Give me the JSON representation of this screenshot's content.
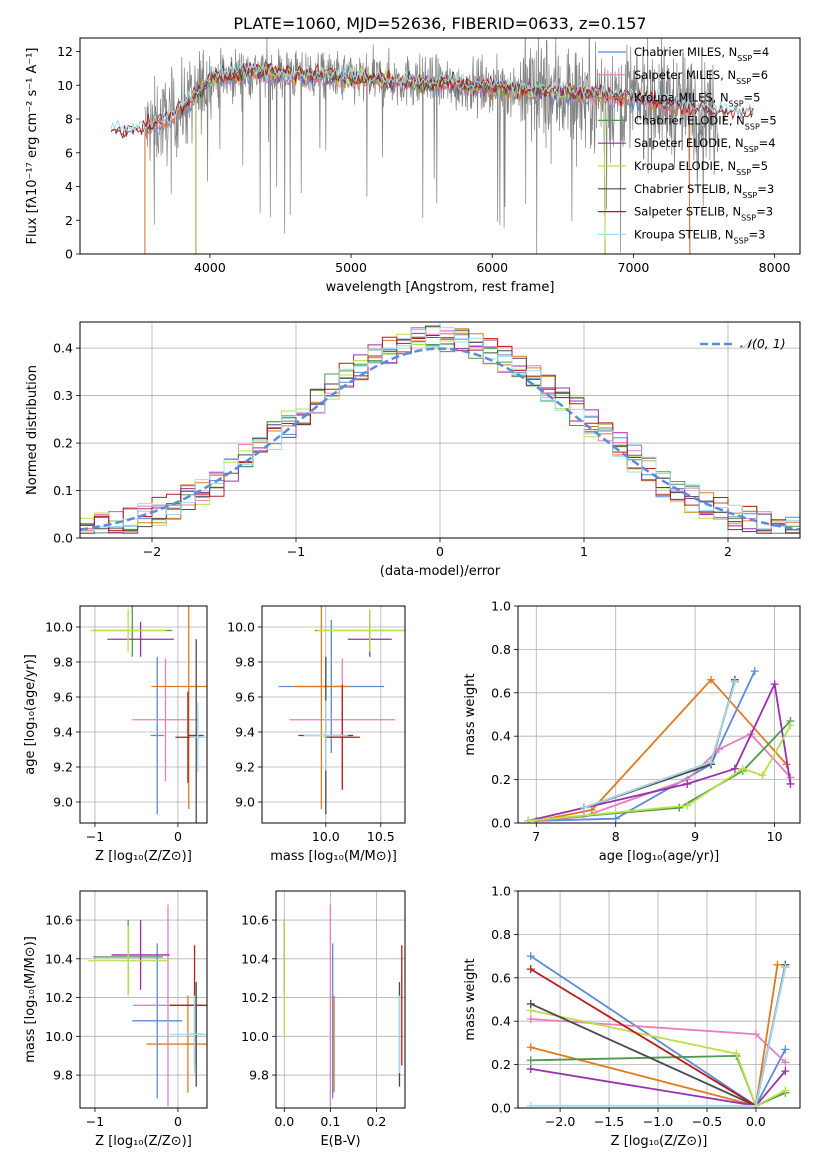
{
  "title": "PLATE=1060, MJD=52636, FIBERID=0633, z=0.157",
  "colors": {
    "chabrier_miles": "#5b8bd9",
    "salpeter_miles": "#e77fbf",
    "kroupa_miles": "#e07a1f",
    "chabrier_elodie": "#4d9a4d",
    "salpeter_elodie": "#9a2fae",
    "kroupa_elodie": "#b8e04a",
    "chabrier_stelib": "#4a4a4a",
    "salpeter_stelib": "#b51d1d",
    "kroupa_stelib": "#9fdcef",
    "data": "#808080",
    "normal": "#5b8bd9"
  },
  "chart_data": [
    {
      "id": "spectrum",
      "type": "line",
      "xlabel": "wavelength [Angstrom, rest frame]",
      "ylabel": "Flux [fλ10⁻¹⁷ erg cm⁻² s⁻¹ A⁻¹]",
      "xlim": [
        3080,
        8180
      ],
      "ylim": [
        0,
        12.8
      ],
      "xticks": [
        4000,
        5000,
        6000,
        7000,
        8000
      ],
      "yticks": [
        0,
        2,
        4,
        6,
        8,
        10,
        12
      ],
      "legend": "top-right",
      "legend_entries": [
        {
          "key": "chabrier_miles",
          "label": "Chabrier MILES, N",
          "sub": "SSP",
          "suffix": "=4"
        },
        {
          "key": "salpeter_miles",
          "label": "Salpeter MILES, N",
          "sub": "SSP",
          "suffix": "=6"
        },
        {
          "key": "kroupa_miles",
          "label": "Kroupa MILES, N",
          "sub": "SSP",
          "suffix": "=5"
        },
        {
          "key": "chabrier_elodie",
          "label": "Chabrier ELODIE, N",
          "sub": "SSP",
          "suffix": "=5"
        },
        {
          "key": "salpeter_elodie",
          "label": "Salpeter ELODIE, N",
          "sub": "SSP",
          "suffix": "=4"
        },
        {
          "key": "kroupa_elodie",
          "label": "Kroupa ELODIE, N",
          "sub": "SSP",
          "suffix": "=5"
        },
        {
          "key": "chabrier_stelib",
          "label": "Chabrier STELIB, N",
          "sub": "SSP",
          "suffix": "=3"
        },
        {
          "key": "salpeter_stelib",
          "label": "Salpeter STELIB, N",
          "sub": "SSP",
          "suffix": "=3"
        },
        {
          "key": "kroupa_stelib",
          "label": "Kroupa STELIB, N",
          "sub": "SSP",
          "suffix": "=3"
        }
      ],
      "continuum": {
        "x": [
          3300,
          3500,
          3700,
          3900,
          4000,
          4300,
          4700,
          5000,
          5300,
          5600,
          6000,
          6400,
          6800,
          7100,
          7400,
          7800
        ],
        "y": [
          7.2,
          7.3,
          8.0,
          9.3,
          10.4,
          10.8,
          10.6,
          10.4,
          10.3,
          10.1,
          9.9,
          9.6,
          9.4,
          9.1,
          8.6,
          8.2
        ]
      },
      "data_range": [
        3540,
        7600
      ],
      "model_range": [
        3300,
        7850
      ]
    },
    {
      "id": "residuals",
      "type": "histogram",
      "xlabel": "(data-model)/error",
      "ylabel": "Normed distribution",
      "xlim": [
        -2.5,
        2.5
      ],
      "ylim": [
        0,
        0.455
      ],
      "xticks": [
        -2,
        -1,
        0,
        1,
        2
      ],
      "yticks": [
        0,
        0.1,
        0.2,
        0.3,
        0.4
      ],
      "legend": "top-right",
      "normal_label": "𝒩(0, 1)",
      "bin_edges": [
        -2.5,
        -2.4,
        -2.3,
        -2.2,
        -2.1,
        -2.0,
        -1.9,
        -1.8,
        -1.7,
        -1.6,
        -1.5,
        -1.4,
        -1.3,
        -1.2,
        -1.1,
        -1.0,
        -0.9,
        -0.8,
        -0.7,
        -0.6,
        -0.5,
        -0.4,
        -0.3,
        -0.2,
        -0.1,
        0.0,
        0.1,
        0.2,
        0.3,
        0.4,
        0.5,
        0.6,
        0.7,
        0.8,
        0.9,
        1.0,
        1.1,
        1.2,
        1.3,
        1.4,
        1.5,
        1.6,
        1.7,
        1.8,
        1.9,
        2.0,
        2.1,
        2.2,
        2.3,
        2.4,
        2.5
      ]
    },
    {
      "id": "age_vs_z",
      "type": "errorbar",
      "xlabel": "Z [log₁₀(Z/Z⊙)]",
      "ylabel": "age  [log₁₀(age/yr)]",
      "xlim": [
        -1.18,
        0.35
      ],
      "ylim": [
        8.88,
        10.12
      ],
      "xticks": [
        -1,
        0
      ],
      "yticks": [
        9.0,
        9.2,
        9.4,
        9.6,
        9.8,
        10.0
      ],
      "points": [
        {
          "key": "chabrier_miles",
          "x": -0.25,
          "y": 9.38,
          "xerr": 0.08,
          "yerr": 0.45
        },
        {
          "key": "salpeter_miles",
          "x": -0.15,
          "y": 9.47,
          "xerr": 0.4,
          "yerr": 0.35
        },
        {
          "key": "kroupa_miles",
          "x": 0.13,
          "y": 9.66,
          "xerr": 0.45,
          "yerr": 0.7
        },
        {
          "key": "chabrier_elodie",
          "x": -0.55,
          "y": 9.98,
          "xerr": 0.48,
          "yerr": 0.15
        },
        {
          "key": "salpeter_elodie",
          "x": -0.45,
          "y": 9.93,
          "xerr": 0.4,
          "yerr": 0.1
        },
        {
          "key": "kroupa_elodie",
          "x": -0.6,
          "y": 9.98,
          "xerr": 0.45,
          "yerr": 0.12
        },
        {
          "key": "chabrier_stelib",
          "x": 0.22,
          "y": 9.38,
          "xerr": 0.09,
          "yerr": 0.55
        },
        {
          "key": "salpeter_stelib",
          "x": 0.12,
          "y": 9.37,
          "xerr": 0.15,
          "yerr": 0.26
        },
        {
          "key": "kroupa_stelib",
          "x": 0.24,
          "y": 9.37,
          "xerr": 0.1,
          "yerr": 0.2
        }
      ]
    },
    {
      "id": "age_vs_mass",
      "type": "errorbar",
      "xlabel": "mass [log₁₀(M/M⊙)]",
      "ylabel": "",
      "xlim": [
        9.42,
        10.72
      ],
      "ylim": [
        8.88,
        10.12
      ],
      "xticks": [
        10.0,
        10.5
      ],
      "yticks": [
        9.0,
        9.2,
        9.4,
        9.6,
        9.8,
        10.0
      ],
      "points": [
        {
          "key": "chabrier_miles",
          "x": 10.05,
          "y": 9.66,
          "xerr": 0.48,
          "yerr": 0.38
        },
        {
          "key": "salpeter_miles",
          "x": 10.15,
          "y": 9.47,
          "xerr": 0.48,
          "yerr": 0.35
        },
        {
          "key": "kroupa_miles",
          "x": 9.96,
          "y": 9.66,
          "xerr": 0.25,
          "yerr": 0.7
        },
        {
          "key": "chabrier_elodie",
          "x": 10.4,
          "y": 9.98,
          "xerr": 0.5,
          "yerr": 0.12
        },
        {
          "key": "salpeter_elodie",
          "x": 10.4,
          "y": 9.93,
          "xerr": 0.2,
          "yerr": 0.1
        },
        {
          "key": "kroupa_elodie",
          "x": 10.4,
          "y": 9.98,
          "xerr": 0.48,
          "yerr": 0.12
        },
        {
          "key": "chabrier_stelib",
          "x": 10.0,
          "y": 9.38,
          "xerr": 0.25,
          "yerr": 0.45
        },
        {
          "key": "salpeter_stelib",
          "x": 10.15,
          "y": 9.37,
          "xerr": 0.16,
          "yerr": 0.3
        },
        {
          "key": "kroupa_stelib",
          "x": 10.0,
          "y": 9.38,
          "xerr": 0.2,
          "yerr": 0.2
        }
      ]
    },
    {
      "id": "mass_weight_vs_age",
      "type": "line",
      "xlabel": "age  [log₁₀(age/yr)]",
      "ylabel": "mass weight",
      "xlim": [
        6.77,
        10.32
      ],
      "ylim": [
        0,
        1.0
      ],
      "xticks": [
        7,
        8,
        9,
        10
      ],
      "yticks": [
        0.0,
        0.2,
        0.4,
        0.6,
        0.8,
        1.0
      ],
      "series": [
        {
          "key": "chabrier_miles",
          "x": [
            7.0,
            8.0,
            9.2,
            9.75
          ],
          "y": [
            0.01,
            0.02,
            0.27,
            0.7
          ]
        },
        {
          "key": "salpeter_miles",
          "x": [
            7.0,
            7.6,
            8.9,
            9.3,
            9.7,
            10.2
          ],
          "y": [
            0.01,
            0.03,
            0.2,
            0.34,
            0.41,
            0.21
          ]
        },
        {
          "key": "kroupa_miles",
          "x": [
            7.0,
            7.7,
            9.2,
            10.15
          ],
          "y": [
            0.01,
            0.06,
            0.66,
            0.27
          ]
        },
        {
          "key": "chabrier_elodie",
          "x": [
            6.9,
            8.8,
            9.6,
            10.2
          ],
          "y": [
            0.01,
            0.07,
            0.24,
            0.47
          ]
        },
        {
          "key": "salpeter_elodie",
          "x": [
            6.9,
            8.9,
            9.5,
            10.0,
            10.2
          ],
          "y": [
            0.01,
            0.18,
            0.25,
            0.64,
            0.18
          ]
        },
        {
          "key": "kroupa_elodie",
          "x": [
            6.9,
            8.9,
            9.6,
            9.85,
            10.2
          ],
          "y": [
            0.01,
            0.08,
            0.25,
            0.22,
            0.45
          ]
        },
        {
          "key": "chabrier_stelib",
          "x": [
            7.6,
            9.2,
            9.5
          ],
          "y": [
            0.07,
            0.27,
            0.66
          ]
        },
        {
          "key": "salpeter_stelib",
          "x": [
            7.6,
            9.2,
            9.5
          ],
          "y": [
            0.07,
            0.28,
            0.65
          ]
        },
        {
          "key": "kroupa_stelib",
          "x": [
            7.6,
            9.2,
            9.5
          ],
          "y": [
            0.07,
            0.28,
            0.65
          ]
        }
      ]
    },
    {
      "id": "mass_vs_z",
      "type": "errorbar",
      "xlabel": "Z [log₁₀(Z/Z⊙)]",
      "ylabel": "mass [log₁₀(M/M⊙)]",
      "xlim": [
        -1.18,
        0.35
      ],
      "ylim": [
        9.63,
        10.75
      ],
      "xticks": [
        -1,
        0
      ],
      "yticks": [
        9.8,
        10.0,
        10.2,
        10.4,
        10.6
      ],
      "points": [
        {
          "key": "chabrier_miles",
          "x": -0.25,
          "y": 10.08,
          "xerr": 0.3,
          "yerr": 0.4
        },
        {
          "key": "salpeter_miles",
          "x": -0.12,
          "y": 10.16,
          "xerr": 0.42,
          "yerr": 0.52
        },
        {
          "key": "kroupa_miles",
          "x": 0.12,
          "y": 9.96,
          "xerr": 0.5,
          "yerr": 0.25
        },
        {
          "key": "chabrier_elodie",
          "x": -0.6,
          "y": 10.41,
          "xerr": 0.42,
          "yerr": 0.19
        },
        {
          "key": "salpeter_elodie",
          "x": -0.45,
          "y": 10.42,
          "xerr": 0.35,
          "yerr": 0.18
        },
        {
          "key": "kroupa_elodie",
          "x": -0.6,
          "y": 10.39,
          "xerr": 0.48,
          "yerr": 0.18
        },
        {
          "key": "chabrier_stelib",
          "x": 0.22,
          "y": 10.01,
          "xerr": 0.08,
          "yerr": 0.27
        },
        {
          "key": "salpeter_stelib",
          "x": 0.2,
          "y": 10.16,
          "xerr": 0.3,
          "yerr": 0.31
        },
        {
          "key": "kroupa_stelib",
          "x": 0.2,
          "y": 10.01,
          "xerr": 0.3,
          "yerr": 0.2
        }
      ]
    },
    {
      "id": "mass_vs_ebv",
      "type": "errorbar",
      "xlabel": "E(B-V)",
      "ylabel": "",
      "xlim": [
        -0.018,
        0.262
      ],
      "ylim": [
        9.63,
        10.75
      ],
      "xticks": [
        0.0,
        0.1,
        0.2
      ],
      "yticks": [
        9.8,
        10.0,
        10.2,
        10.4,
        10.6
      ],
      "points": [
        {
          "key": "chabrier_miles",
          "x": 0.105,
          "y": 10.08,
          "xerr": 0.0,
          "yerr": 0.4
        },
        {
          "key": "salpeter_miles",
          "x": 0.1,
          "y": 10.16,
          "xerr": 0.0,
          "yerr": 0.52
        },
        {
          "key": "kroupa_miles",
          "x": 0.108,
          "y": 9.96,
          "xerr": 0.0,
          "yerr": 0.25
        },
        {
          "key": "chabrier_elodie",
          "x": 0.0,
          "y": 10.41,
          "xerr": 0.0,
          "yerr": 0.19
        },
        {
          "key": "salpeter_elodie",
          "x": 0.0,
          "y": 10.42,
          "xerr": 0.0,
          "yerr": 0.18
        },
        {
          "key": "kroupa_elodie",
          "x": 0.0,
          "y": 10.3,
          "xerr": 0.0,
          "yerr": 0.3
        },
        {
          "key": "chabrier_stelib",
          "x": 0.25,
          "y": 10.01,
          "xerr": 0.0,
          "yerr": 0.27
        },
        {
          "key": "salpeter_stelib",
          "x": 0.255,
          "y": 10.16,
          "xerr": 0.0,
          "yerr": 0.31
        },
        {
          "key": "kroupa_stelib",
          "x": 0.25,
          "y": 10.01,
          "xerr": 0.0,
          "yerr": 0.2
        }
      ]
    },
    {
      "id": "mass_weight_vs_z",
      "type": "line",
      "xlabel": "Z [log₁₀(Z/Z⊙)]",
      "ylabel": "mass weight",
      "xlim": [
        -2.43,
        0.45
      ],
      "ylim": [
        0,
        1.0
      ],
      "xticks": [
        -2.0,
        -1.5,
        -1.0,
        -0.5,
        0.0
      ],
      "yticks": [
        0.0,
        0.2,
        0.4,
        0.6,
        0.8,
        1.0
      ],
      "series": [
        {
          "key": "chabrier_miles",
          "x": [
            -2.3,
            0.0,
            0.3
          ],
          "y": [
            0.7,
            0.01,
            0.27
          ]
        },
        {
          "key": "salpeter_miles",
          "x": [
            -2.3,
            0.0,
            0.3
          ],
          "y": [
            0.41,
            0.34,
            0.21
          ]
        },
        {
          "key": "kroupa_miles",
          "x": [
            -2.3,
            0.0,
            0.22
          ],
          "y": [
            0.28,
            0.01,
            0.66
          ]
        },
        {
          "key": "chabrier_elodie",
          "x": [
            -2.3,
            -0.2,
            0.0,
            0.3
          ],
          "y": [
            0.22,
            0.24,
            0.01,
            0.07
          ]
        },
        {
          "key": "salpeter_elodie",
          "x": [
            -2.3,
            0.0,
            0.3
          ],
          "y": [
            0.18,
            0.01,
            0.17
          ]
        },
        {
          "key": "kroupa_elodie",
          "x": [
            -2.3,
            -0.2,
            0.0,
            0.3
          ],
          "y": [
            0.45,
            0.25,
            0.01,
            0.08
          ]
        },
        {
          "key": "chabrier_stelib",
          "x": [
            -2.3,
            0.0,
            0.3
          ],
          "y": [
            0.48,
            0.01,
            0.66
          ]
        },
        {
          "key": "salpeter_stelib",
          "x": [
            -2.3,
            0.0,
            0.3
          ],
          "y": [
            0.64,
            0.01,
            0.65
          ]
        },
        {
          "key": "kroupa_stelib",
          "x": [
            -2.3,
            0.0,
            0.3
          ],
          "y": [
            0.01,
            0.01,
            0.65
          ]
        }
      ]
    }
  ]
}
